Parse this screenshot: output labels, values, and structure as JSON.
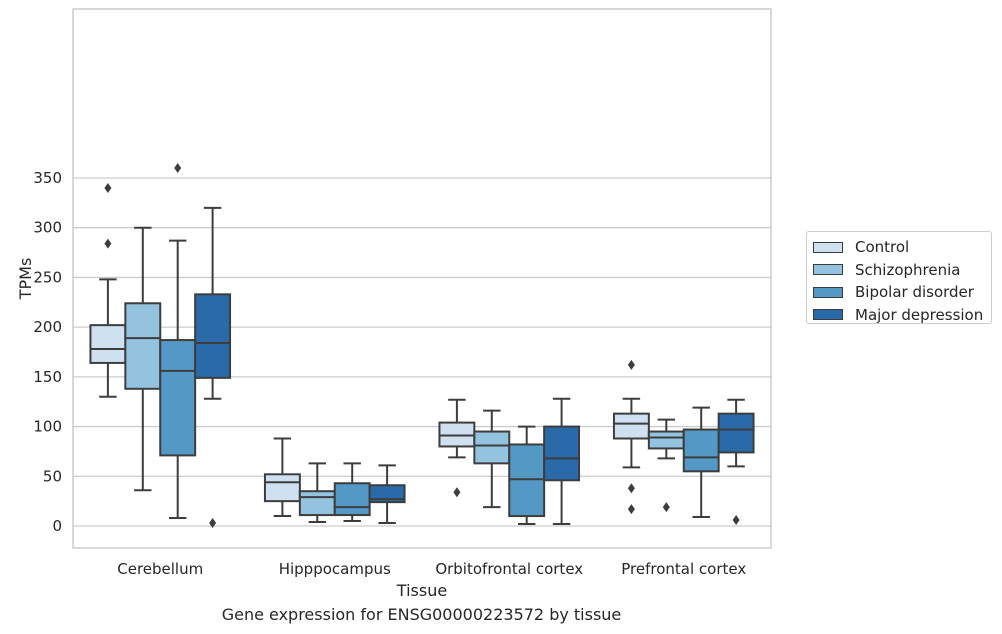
{
  "chart_data": {
    "type": "box",
    "title": "Gene expression for ENSG00000223572 by tissue",
    "xlabel": "Tissue",
    "ylabel": "TPMs",
    "ylim": [
      -16,
      380
    ],
    "yticks": [
      0,
      50,
      100,
      150,
      200,
      250,
      300,
      350
    ],
    "grid": true,
    "legend_position": "right",
    "categories": [
      "Cerebellum",
      "Hipppocampus",
      "Orbitofrontal cortex",
      "Prefrontal cortex"
    ],
    "series": [
      {
        "name": "Control",
        "color": "#cfe1f1",
        "boxes": [
          {
            "whisker_low": 130,
            "q1": 164,
            "median": 178,
            "q3": 202,
            "whisker_high": 248,
            "outliers": [
              284,
              340
            ]
          },
          {
            "whisker_low": 10,
            "q1": 25,
            "median": 44,
            "q3": 52,
            "whisker_high": 88,
            "outliers": []
          },
          {
            "whisker_low": 69,
            "q1": 80,
            "median": 91,
            "q3": 104,
            "whisker_high": 127,
            "outliers": [
              34
            ]
          },
          {
            "whisker_low": 59,
            "q1": 88,
            "median": 103,
            "q3": 113,
            "whisker_high": 128,
            "outliers": [
              17,
              38,
              162
            ]
          }
        ]
      },
      {
        "name": "Schizophrenia",
        "color": "#94c3e0",
        "boxes": [
          {
            "whisker_low": 36,
            "q1": 138,
            "median": 189,
            "q3": 224,
            "whisker_high": 300,
            "outliers": []
          },
          {
            "whisker_low": 4,
            "q1": 11,
            "median": 29,
            "q3": 35,
            "whisker_high": 63,
            "outliers": []
          },
          {
            "whisker_low": 19,
            "q1": 63,
            "median": 81,
            "q3": 95,
            "whisker_high": 116,
            "outliers": []
          },
          {
            "whisker_low": 68,
            "q1": 78,
            "median": 89,
            "q3": 95,
            "whisker_high": 107,
            "outliers": [
              19
            ]
          }
        ]
      },
      {
        "name": "Bipolar disorder",
        "color": "#5499c6",
        "boxes": [
          {
            "whisker_low": 8,
            "q1": 71,
            "median": 156,
            "q3": 187,
            "whisker_high": 287,
            "outliers": [
              360
            ]
          },
          {
            "whisker_low": 5,
            "q1": 11,
            "median": 19,
            "q3": 43,
            "whisker_high": 63,
            "outliers": []
          },
          {
            "whisker_low": 2,
            "q1": 10,
            "median": 47,
            "q3": 82,
            "whisker_high": 100,
            "outliers": []
          },
          {
            "whisker_low": 9,
            "q1": 55,
            "median": 69,
            "q3": 97,
            "whisker_high": 119,
            "outliers": []
          }
        ]
      },
      {
        "name": "Major depression",
        "color": "#2a6aa9",
        "boxes": [
          {
            "whisker_low": 128,
            "q1": 149,
            "median": 184,
            "q3": 233,
            "whisker_high": 320,
            "outliers": [
              3
            ]
          },
          {
            "whisker_low": 3,
            "q1": 24,
            "median": 27,
            "q3": 41,
            "whisker_high": 61,
            "outliers": []
          },
          {
            "whisker_low": 2,
            "q1": 46,
            "median": 68,
            "q3": 100,
            "whisker_high": 128,
            "outliers": []
          },
          {
            "whisker_low": 60,
            "q1": 74,
            "median": 97,
            "q3": 113,
            "whisker_high": 127,
            "outliers": [
              6
            ]
          }
        ]
      }
    ]
  }
}
